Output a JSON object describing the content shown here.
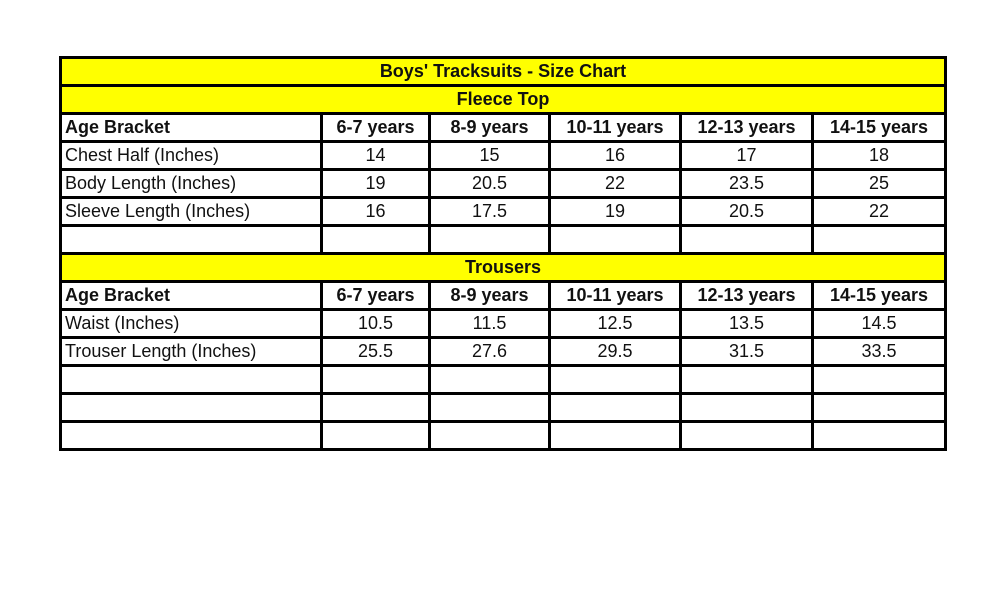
{
  "title": "Boys' Tracksuits - Size Chart",
  "sections": [
    {
      "title": "Fleece Top",
      "header": [
        "Age Bracket",
        "6-7 years",
        "8-9 years",
        "10-11 years",
        "12-13 years",
        "14-15 years"
      ],
      "rows": [
        [
          "Chest Half (Inches)",
          "14",
          "15",
          "16",
          "17",
          "18"
        ],
        [
          "Body Length (Inches)",
          "19",
          "20.5",
          "22",
          "23.5",
          "25"
        ],
        [
          "Sleeve Length (Inches)",
          "16",
          "17.5",
          "19",
          "20.5",
          "22"
        ]
      ]
    },
    {
      "title": "Trousers",
      "header": [
        "Age Bracket",
        "6-7 years",
        "8-9 years",
        "10-11 years",
        "12-13 years",
        "14-15 years"
      ],
      "rows": [
        [
          "Waist (Inches)",
          "10.5",
          "11.5",
          "12.5",
          "13.5",
          "14.5"
        ],
        [
          "Trouser Length (Inches)",
          "25.5",
          "27.6",
          "29.5",
          "31.5",
          "33.5"
        ]
      ]
    }
  ]
}
